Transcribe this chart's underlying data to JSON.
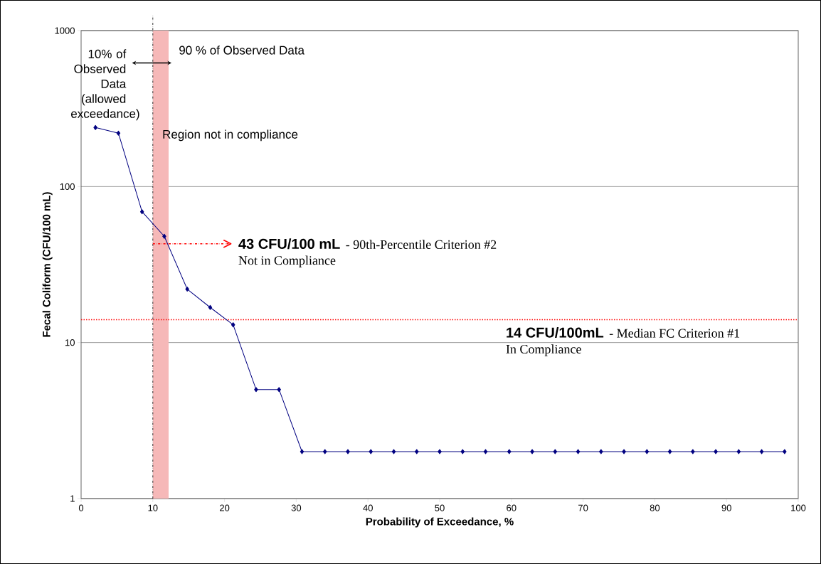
{
  "chart_data": {
    "type": "line",
    "xlabel": "Probability of Exceedance, %",
    "ylabel": "Fecal Coliform (CFU/100 mL)",
    "series": [
      {
        "color": "#000080",
        "x": [
          2.0,
          5.2,
          8.5,
          11.6,
          14.8,
          18.0,
          21.2,
          24.4,
          27.6,
          30.8,
          34.0,
          37.2,
          40.4,
          43.6,
          46.8,
          50.0,
          53.2,
          56.4,
          59.7,
          62.9,
          66.1,
          69.3,
          72.5,
          75.7,
          78.9,
          82.1,
          85.3,
          88.5,
          91.7,
          94.9,
          98.1
        ],
        "values": [
          239,
          220,
          69,
          48,
          22,
          16.8,
          13,
          5,
          5,
          2,
          2,
          2,
          2,
          2,
          2,
          2,
          2,
          2,
          2,
          2,
          2,
          2,
          2,
          2,
          2,
          2,
          2,
          2,
          2,
          2,
          2
        ]
      }
    ],
    "xlim": [
      0,
      100
    ],
    "xticks": [
      0,
      10,
      20,
      30,
      40,
      50,
      60,
      70,
      80,
      90,
      100
    ],
    "ylim": [
      1,
      1000
    ],
    "yticks": [
      1,
      10,
      100,
      1000
    ],
    "log": "y",
    "grid": "y",
    "marker": "diamond",
    "line_style": "solid",
    "ref_lines": [
      {
        "axis": "y",
        "value": 14,
        "label": "14 CFU/100mL",
        "color": "#ff0000",
        "line_style": "dotted"
      },
      {
        "axis": "x",
        "value": 10,
        "color": "#000000",
        "line_style": "dashdot"
      },
      {
        "axis": "y",
        "value": 43,
        "label": "43 CFU/100 mL",
        "color": "#ff0000",
        "line_style": "dashdot"
      }
    ],
    "bands": [
      {
        "axis": "x",
        "from": 10,
        "to": 12.2,
        "label": "Region not in compliance",
        "color": "#f6b8b8"
      }
    ],
    "annotations": [
      {
        "text": "10% of Observed Data (allowed exceedance)",
        "x": 10,
        "y": 620
      },
      "90 % of Observed Data",
      "- 90th-Percentile Criterion #2",
      "Not in Compliance",
      "- Median FC Criterion #1",
      "In Compliance"
    ]
  }
}
